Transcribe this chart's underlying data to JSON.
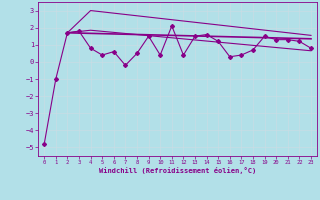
{
  "title": "",
  "xlabel": "Windchill (Refroidissement éolien,°C)",
  "background_color": "#b2e0e8",
  "grid_color": "#c8dde5",
  "line_color": "#880088",
  "xlim": [
    -0.5,
    23.5
  ],
  "ylim": [
    -5.5,
    3.5
  ],
  "yticks": [
    -5,
    -4,
    -3,
    -2,
    -1,
    0,
    1,
    2,
    3
  ],
  "xticks": [
    0,
    1,
    2,
    3,
    4,
    5,
    6,
    7,
    8,
    9,
    10,
    11,
    12,
    13,
    14,
    15,
    16,
    17,
    18,
    19,
    20,
    21,
    22,
    23
  ],
  "series1_x": [
    0,
    1,
    2,
    3,
    4,
    5,
    6,
    7,
    8,
    9,
    10,
    11,
    12,
    13,
    14,
    15,
    16,
    17,
    18,
    19,
    20,
    21,
    22,
    23
  ],
  "series1_y": [
    -4.8,
    -1.0,
    1.7,
    1.8,
    0.8,
    0.4,
    0.6,
    -0.2,
    0.5,
    1.5,
    0.4,
    2.1,
    0.4,
    1.5,
    1.6,
    1.2,
    0.3,
    0.4,
    0.7,
    1.5,
    1.3,
    1.3,
    1.2,
    0.8
  ],
  "series2_x": [
    2,
    4,
    23
  ],
  "series2_y": [
    1.7,
    3.0,
    1.55
  ],
  "series3_x": [
    2,
    23
  ],
  "series3_y": [
    1.7,
    1.35
  ],
  "series4_x": [
    2,
    4,
    23
  ],
  "series4_y": [
    1.7,
    1.85,
    0.65
  ]
}
